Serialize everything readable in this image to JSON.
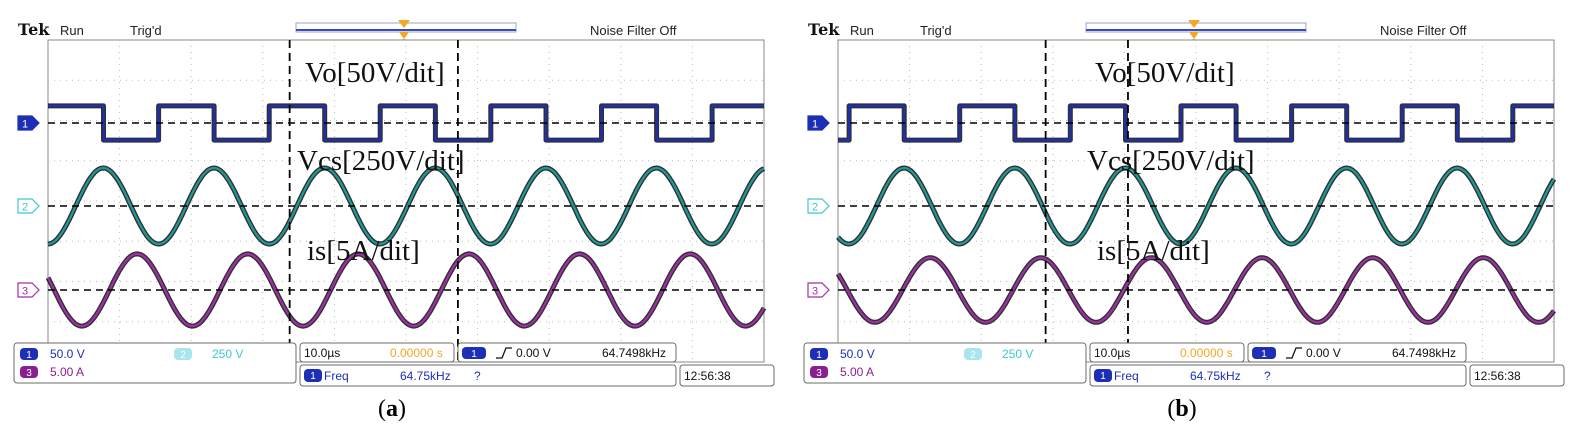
{
  "panels": [
    {
      "id": "a",
      "caption": "a",
      "header": {
        "brand": "Tek",
        "mode": "Run",
        "trigger": "Trig'd",
        "filter": "Noise Filter Off"
      },
      "markers": [
        33.75,
        57.25
      ],
      "status": {
        "ch1_scale": "50.0 V",
        "ch2_scale": "250 V",
        "ch3_scale": "5.00 A",
        "timebase": "10.0µs",
        "delay": "0.00000 s",
        "trig_level": "0.00 V",
        "trig_freq": "64.7498kHz",
        "meas_label": "Freq",
        "meas_value": "64.75kHz",
        "meas_flag": "?",
        "clock": "12:56:38"
      },
      "labels": {
        "vo": "Vo[50V/dit]",
        "vcs": "Vcs[250V/dit]",
        "is": "is[5A/dit]"
      }
    },
    {
      "id": "b",
      "caption": "b",
      "header": {
        "brand": "Tek",
        "mode": "Run",
        "trigger": "Trig'd",
        "filter": "Noise Filter Off"
      },
      "markers": [
        29,
        40.5
      ],
      "status": {
        "ch1_scale": "50.0 V",
        "ch2_scale": "250 V",
        "ch3_scale": "5.00 A",
        "timebase": "10.0µs",
        "delay": "0.00000 s",
        "trig_level": "0.00 V",
        "trig_freq": "64.7498kHz",
        "meas_label": "Freq",
        "meas_value": "64.75kHz",
        "meas_flag": "?",
        "clock": "12:56:38"
      },
      "labels": {
        "vo": "Vo[50V/dit]",
        "vcs": "Vcs[250V/dit]",
        "is": "is[5A/dit]"
      }
    }
  ],
  "chart_data": [
    {
      "type": "line",
      "panel": "a",
      "x_unit": "µs",
      "x_range": [
        0,
        100
      ],
      "period_us": 15.45,
      "series": [
        {
          "name": "Vo[50V/dit]",
          "channel": 1,
          "color": "#1d2fb5",
          "shape": "square",
          "amplitude_div": 0.45,
          "phase_deg": 0
        },
        {
          "name": "Vcs[250V/dit]",
          "channel": 2,
          "color": "#1d9a9a",
          "shape": "sine",
          "amplitude_div": 1.0,
          "phase_deg": -90
        },
        {
          "name": "is[5A/dit]",
          "channel": 3,
          "color": "#a02fa8",
          "shape": "sine",
          "amplitude_div": 0.95,
          "phase_deg": -200
        }
      ],
      "markers_us": [
        33.75,
        57.25
      ]
    },
    {
      "type": "line",
      "panel": "b",
      "x_unit": "µs",
      "x_range": [
        0,
        100
      ],
      "period_us": 15.45,
      "series": [
        {
          "name": "Vo[50V/dit]",
          "channel": 1,
          "color": "#1d2fb5",
          "shape": "square",
          "amplitude_div": 0.45,
          "phase_deg": -35
        },
        {
          "name": "Vcs[250V/dit]",
          "channel": 2,
          "color": "#1d9a9a",
          "shape": "sine",
          "amplitude_div": 1.0,
          "phase_deg": -125
        },
        {
          "name": "is[5A/dit]",
          "channel": 3,
          "color": "#a02fa8",
          "shape": "sine",
          "amplitude_div": 0.85,
          "phase_deg": -210
        }
      ],
      "markers_us": [
        29,
        40.5
      ]
    }
  ]
}
